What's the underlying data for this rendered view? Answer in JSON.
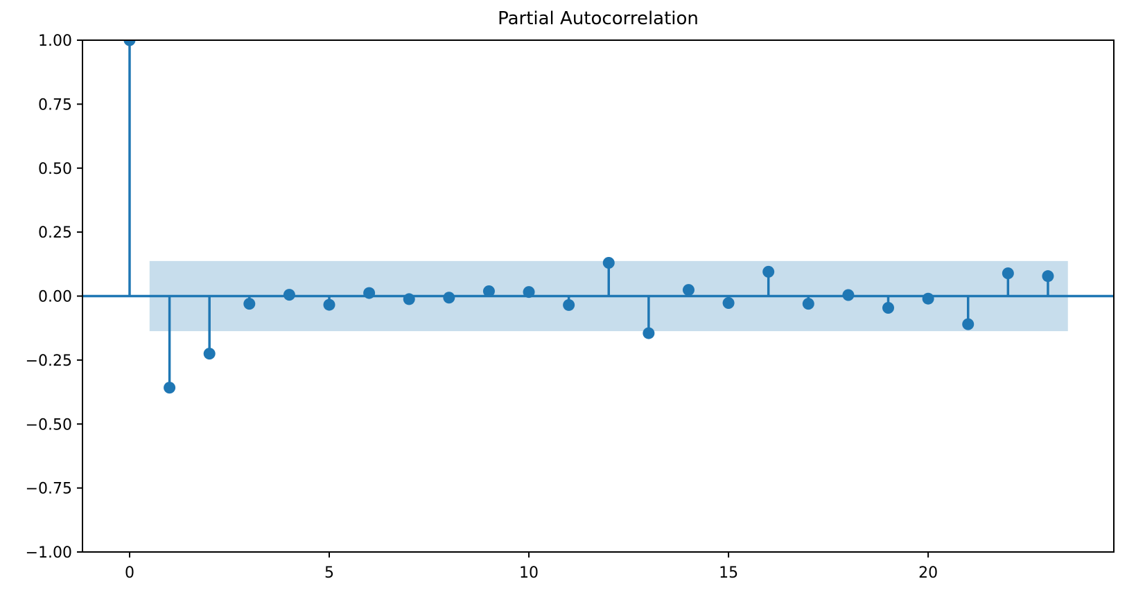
{
  "chart_data": {
    "type": "scatter",
    "subtype": "stem",
    "title": "Partial Autocorrelation",
    "xlabel": "",
    "ylabel": "",
    "x": [
      0,
      1,
      2,
      3,
      4,
      5,
      6,
      7,
      8,
      9,
      10,
      11,
      12,
      13,
      14,
      15,
      16,
      17,
      18,
      19,
      20,
      21,
      22,
      23
    ],
    "values": [
      1.0,
      -0.358,
      -0.225,
      -0.03,
      0.005,
      -0.034,
      0.012,
      -0.012,
      -0.006,
      0.019,
      0.016,
      -0.035,
      0.13,
      -0.145,
      0.024,
      -0.027,
      0.095,
      -0.03,
      0.004,
      -0.046,
      -0.01,
      -0.11,
      0.089,
      0.078
    ],
    "confidence_band": {
      "lower": -0.137,
      "upper": 0.137,
      "x_start": 0.5,
      "x_end": 23.5
    },
    "xlim": [
      -1.18,
      24.65
    ],
    "ylim": [
      -1.0,
      1.0
    ],
    "x_ticks": [
      0,
      5,
      10,
      15,
      20
    ],
    "x_tick_labels": [
      "0",
      "5",
      "10",
      "15",
      "20"
    ],
    "y_ticks": [
      -1.0,
      -0.75,
      -0.5,
      -0.25,
      0.0,
      0.25,
      0.5,
      0.75,
      1.0
    ],
    "y_tick_labels": [
      "−1.00",
      "−0.75",
      "−0.50",
      "−0.25",
      "0.00",
      "0.25",
      "0.50",
      "0.75",
      "1.00"
    ],
    "grid": false,
    "legend": null,
    "colors": {
      "stem": "#1f77b4",
      "marker": "#1f77b4",
      "zero_line": "#1f77b4",
      "confidence_band": "rgba(31,119,180,0.25)",
      "spine": "#000000",
      "tick_label": "#000000"
    }
  }
}
